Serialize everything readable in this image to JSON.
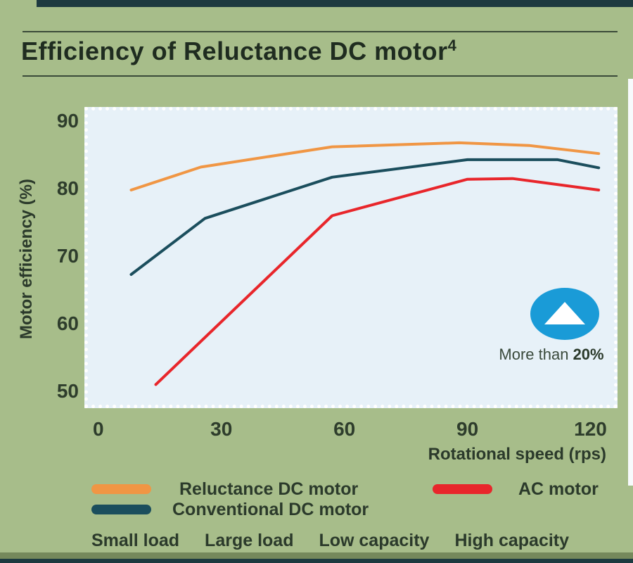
{
  "header": {
    "title": "Efficiency of Reluctance DC motor",
    "title_superscript": "4"
  },
  "colors": {
    "background": "#A7BD8A",
    "plot_background": "#E7F1F8",
    "accent_bar": "#1E3A40",
    "text_dark": "#2B3A2B",
    "badge_circle": "#1A9BD7",
    "reluctance_line": "#F09644",
    "conventional_line": "#1B4E5D",
    "ac_line": "#E8262B"
  },
  "chart_data": {
    "type": "line",
    "title": "Efficiency of Reluctance DC motor",
    "xlabel": "Rotational speed (rps)",
    "ylabel": "Motor efficiency (%)",
    "x_ticks": [
      0,
      30,
      60,
      90,
      120
    ],
    "y_ticks": [
      90,
      80,
      70,
      60,
      50
    ],
    "x_range": [
      -3.4,
      126.6
    ],
    "y_range": [
      47.5,
      92.1
    ],
    "grid": false,
    "legend_position": "bottom",
    "series": [
      {
        "name": "Reluctance DC motor",
        "color": "#F09644",
        "points": [
          [
            8,
            79.8
          ],
          [
            25,
            83.2
          ],
          [
            57,
            86.2
          ],
          [
            88,
            86.8
          ],
          [
            105,
            86.4
          ],
          [
            122,
            85.2
          ]
        ]
      },
      {
        "name": "Conventional DC motor",
        "color": "#1B4E5D",
        "points": [
          [
            8,
            67.3
          ],
          [
            26,
            75.6
          ],
          [
            57,
            81.7
          ],
          [
            90,
            84.3
          ],
          [
            112,
            84.3
          ],
          [
            122,
            83.1
          ]
        ]
      },
      {
        "name": "AC motor",
        "color": "#E8262B",
        "points": [
          [
            14,
            51.0
          ],
          [
            57,
            76.0
          ],
          [
            90,
            81.4
          ],
          [
            101,
            81.5
          ],
          [
            122,
            79.8
          ]
        ]
      }
    ]
  },
  "badge": {
    "text_regular": "More than ",
    "text_bold": "20%"
  },
  "footer_labels": [
    "Small load",
    "Large load",
    "Low capacity",
    "High capacity"
  ]
}
